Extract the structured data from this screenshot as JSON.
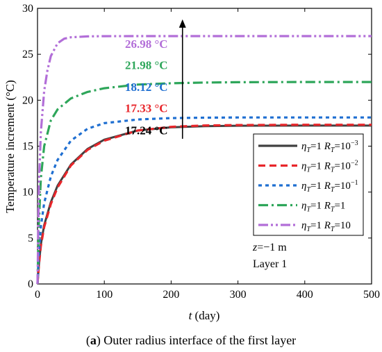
{
  "chart_data": {
    "type": "line",
    "xlabel_italic": "t",
    "xlabel_rest": " (day)",
    "ylabel": "Temperature increment (°C)",
    "xlim": [
      0,
      500
    ],
    "ylim": [
      0,
      30
    ],
    "xticks": [
      0,
      100,
      200,
      300,
      400,
      500
    ],
    "yticks": [
      0,
      5,
      10,
      15,
      20,
      25,
      30
    ],
    "legend_position": "bottom-right",
    "grid": false,
    "series": [
      {
        "eta": "η",
        "eta_sub": "T",
        "eta_val": "=1 ",
        "r": "R",
        "r_sub": "T",
        "r_val": "=10",
        "r_sup": "−3",
        "color": "#404040",
        "dash": "",
        "final": 17.24,
        "x": [
          0,
          2,
          5,
          10,
          20,
          30,
          50,
          75,
          100,
          150,
          200,
          250,
          300,
          400,
          500
        ],
        "y": [
          0,
          2.0,
          4.3,
          6.4,
          8.9,
          10.7,
          13.0,
          14.7,
          15.7,
          16.7,
          17.05,
          17.18,
          17.22,
          17.24,
          17.24
        ]
      },
      {
        "eta": "η",
        "eta_sub": "T",
        "eta_val": "=1 ",
        "r": "R",
        "r_sub": "T",
        "r_val": "=10",
        "r_sup": "−2",
        "color": "#e8262b",
        "dash": "10 6",
        "final": 17.33,
        "x": [
          0,
          2,
          5,
          10,
          20,
          30,
          50,
          75,
          100,
          150,
          200,
          250,
          300,
          400,
          500
        ],
        "y": [
          0,
          1.9,
          4.1,
          6.2,
          8.7,
          10.5,
          12.9,
          14.6,
          15.6,
          16.7,
          17.1,
          17.25,
          17.3,
          17.33,
          17.33
        ]
      },
      {
        "eta": "η",
        "eta_sub": "T",
        "eta_val": "=1 ",
        "r": "R",
        "r_sub": "T",
        "r_val": "=10",
        "r_sup": "−1",
        "color": "#1f6fd1",
        "dash": "5 5",
        "final": 18.12,
        "x": [
          0,
          2,
          5,
          10,
          20,
          30,
          50,
          75,
          100,
          150,
          200,
          250,
          300,
          400,
          500
        ],
        "y": [
          0,
          3.0,
          6.2,
          8.8,
          11.7,
          13.5,
          15.6,
          16.9,
          17.5,
          17.9,
          18.05,
          18.1,
          18.12,
          18.12,
          18.12
        ]
      },
      {
        "eta": "η",
        "eta_sub": "T",
        "eta_val": "=1 ",
        "r": "R",
        "r_sub": "T",
        "r_val": "=1",
        "r_sup": "",
        "color": "#2ea65a",
        "dash": "14 5 3 5",
        "final": 21.98,
        "x": [
          0,
          2,
          5,
          10,
          20,
          30,
          50,
          75,
          100,
          150,
          200,
          250,
          300,
          400,
          500
        ],
        "y": [
          0,
          6.5,
          11.5,
          15.0,
          17.8,
          19.0,
          20.2,
          20.9,
          21.3,
          21.7,
          21.85,
          21.92,
          21.96,
          21.98,
          21.98
        ]
      },
      {
        "eta": "η",
        "eta_sub": "T",
        "eta_val": "=1 ",
        "r": "R",
        "r_sub": "T",
        "r_val": "=10",
        "r_sup": "",
        "color": "#b26ed8",
        "dash": "14 4 3 4 3 4",
        "final": 26.98,
        "x": [
          0,
          2,
          5,
          10,
          15,
          20,
          30,
          40,
          50,
          75,
          100,
          150,
          200,
          300,
          400,
          500
        ],
        "y": [
          0,
          10.5,
          16.5,
          21.0,
          23.3,
          24.8,
          26.2,
          26.7,
          26.85,
          26.95,
          26.97,
          26.98,
          26.98,
          26.98,
          26.98,
          26.98
        ]
      }
    ],
    "annotations": [
      {
        "text": "26.98 °C",
        "color": "#b26ed8",
        "x": 195,
        "y": 25.7
      },
      {
        "text": "21.98 °C",
        "color": "#2ea65a",
        "x": 195,
        "y": 23.4
      },
      {
        "text": "18.12 °C",
        "color": "#1f6fd1",
        "x": 195,
        "y": 21.0
      },
      {
        "text": "17.33 °C",
        "color": "#e8262b",
        "x": 195,
        "y": 18.7
      },
      {
        "text": "17.24 °C",
        "color": "#000000",
        "x": 195,
        "y": 16.3
      }
    ],
    "arrow": {
      "x": 217,
      "y_from": 15.8,
      "y_to": 28.8
    },
    "note_z_italic": "z",
    "note_z_rest": "=−1 m",
    "note_layer": "Layer 1"
  },
  "caption": {
    "label": "(",
    "bold": "a",
    "rest": ") Outer radius interface of the first layer"
  }
}
